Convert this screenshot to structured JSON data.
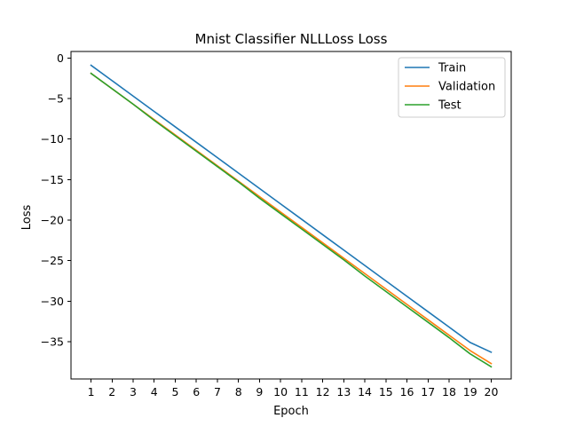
{
  "chart_data": {
    "type": "line",
    "title": "Mnist Classifier NLLLoss Loss",
    "xlabel": "Epoch",
    "ylabel": "Loss",
    "x": [
      1,
      2,
      3,
      4,
      5,
      6,
      7,
      8,
      9,
      10,
      11,
      12,
      13,
      14,
      15,
      16,
      17,
      18,
      19,
      20
    ],
    "xlim": [
      0.05,
      20.95
    ],
    "ylim": [
      -39.6,
      0.8
    ],
    "yticks": [
      0,
      -5,
      -10,
      -15,
      -20,
      -25,
      -30,
      -35
    ],
    "grid": false,
    "legend_position": "top-right",
    "series": [
      {
        "name": "Train",
        "color": "#1f77b4",
        "values": [
          -0.9,
          -2.8,
          -4.7,
          -6.6,
          -8.5,
          -10.4,
          -12.3,
          -14.2,
          -16.1,
          -18.0,
          -19.9,
          -21.8,
          -23.7,
          -25.6,
          -27.5,
          -29.4,
          -31.3,
          -33.2,
          -35.1,
          -36.3
        ]
      },
      {
        "name": "Validation",
        "color": "#ff7f0e",
        "values": [
          -1.9,
          -3.8,
          -5.7,
          -7.6,
          -9.5,
          -11.4,
          -13.3,
          -15.2,
          -17.1,
          -19.0,
          -20.9,
          -22.8,
          -24.7,
          -26.6,
          -28.5,
          -30.4,
          -32.3,
          -34.2,
          -36.1,
          -37.7
        ]
      },
      {
        "name": "Test",
        "color": "#2ca02c",
        "values": [
          -1.9,
          -3.8,
          -5.7,
          -7.7,
          -9.6,
          -11.5,
          -13.4,
          -15.3,
          -17.3,
          -19.2,
          -21.1,
          -23.0,
          -24.9,
          -26.9,
          -28.8,
          -30.7,
          -32.6,
          -34.5,
          -36.5,
          -38.1
        ]
      }
    ]
  }
}
